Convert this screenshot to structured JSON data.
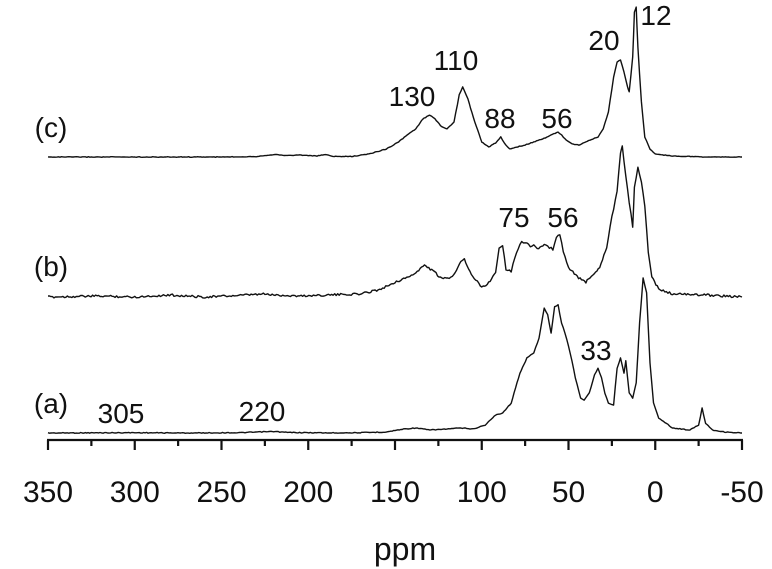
{
  "chart_data": {
    "type": "line",
    "xlabel": "ppm",
    "xlim": [
      350,
      -50
    ],
    "x_ticks": [
      "350",
      "300",
      "250",
      "200",
      "150",
      "100",
      "50",
      "0",
      "-50"
    ],
    "x_tick_values": [
      350,
      300,
      250,
      200,
      150,
      100,
      50,
      0,
      -50
    ],
    "grid": false,
    "series": [
      {
        "name": "(a)",
        "points": [
          [
            350,
            0
          ],
          [
            320,
            0.2
          ],
          [
            300,
            0.3
          ],
          [
            270,
            0
          ],
          [
            240,
            0.3
          ],
          [
            225,
            1.2
          ],
          [
            220,
            1.5
          ],
          [
            212,
            0.6
          ],
          [
            190,
            0.1
          ],
          [
            170,
            0.3
          ],
          [
            155,
            1
          ],
          [
            145,
            4
          ],
          [
            138,
            5
          ],
          [
            130,
            3
          ],
          [
            120,
            4
          ],
          [
            112,
            5
          ],
          [
            105,
            4
          ],
          [
            98,
            8
          ],
          [
            92,
            18
          ],
          [
            88,
            20
          ],
          [
            83,
            30
          ],
          [
            78,
            60
          ],
          [
            74,
            75
          ],
          [
            70,
            80
          ],
          [
            67,
            95
          ],
          [
            64,
            125
          ],
          [
            62,
            118
          ],
          [
            60,
            100
          ],
          [
            58,
            126
          ],
          [
            56,
            128
          ],
          [
            54,
            110
          ],
          [
            52,
            100
          ],
          [
            49,
            80
          ],
          [
            46,
            55
          ],
          [
            43,
            35
          ],
          [
            41,
            33
          ],
          [
            38,
            40
          ],
          [
            35,
            58
          ],
          [
            33,
            65
          ],
          [
            31,
            55
          ],
          [
            29,
            40
          ],
          [
            27,
            30
          ],
          [
            24,
            28
          ],
          [
            22,
            65
          ],
          [
            20,
            75
          ],
          [
            18,
            60
          ],
          [
            17,
            72
          ],
          [
            15,
            40
          ],
          [
            13,
            35
          ],
          [
            11,
            50
          ],
          [
            9,
            110
          ],
          [
            7,
            155
          ],
          [
            5,
            140
          ],
          [
            3,
            70
          ],
          [
            1,
            30
          ],
          [
            -2,
            15
          ],
          [
            -10,
            5
          ],
          [
            -20,
            3
          ],
          [
            -25,
            8
          ],
          [
            -27,
            25
          ],
          [
            -29,
            10
          ],
          [
            -33,
            3
          ],
          [
            -40,
            1
          ],
          [
            -50,
            0
          ]
        ]
      },
      {
        "name": "(b)",
        "points": [
          [
            350,
            0
          ],
          [
            320,
            1
          ],
          [
            300,
            0
          ],
          [
            280,
            2
          ],
          [
            260,
            0
          ],
          [
            240,
            1.5
          ],
          [
            225,
            3
          ],
          [
            220,
            2
          ],
          [
            205,
            1
          ],
          [
            190,
            2
          ],
          [
            170,
            3
          ],
          [
            158,
            8
          ],
          [
            150,
            15
          ],
          [
            145,
            18
          ],
          [
            138,
            24
          ],
          [
            133,
            32
          ],
          [
            128,
            26
          ],
          [
            123,
            18
          ],
          [
            117,
            20
          ],
          [
            112,
            36
          ],
          [
            110,
            38
          ],
          [
            106,
            22
          ],
          [
            100,
            10
          ],
          [
            96,
            14
          ],
          [
            92,
            25
          ],
          [
            90,
            50
          ],
          [
            88,
            52
          ],
          [
            86,
            28
          ],
          [
            83,
            26
          ],
          [
            80,
            45
          ],
          [
            77,
            55
          ],
          [
            74,
            55
          ],
          [
            72,
            50
          ],
          [
            70,
            52
          ],
          [
            68,
            48
          ],
          [
            64,
            52
          ],
          [
            62,
            50
          ],
          [
            59,
            48
          ],
          [
            57,
            60
          ],
          [
            55,
            62
          ],
          [
            53,
            45
          ],
          [
            50,
            30
          ],
          [
            45,
            20
          ],
          [
            40,
            15
          ],
          [
            36,
            22
          ],
          [
            32,
            30
          ],
          [
            28,
            50
          ],
          [
            25,
            80
          ],
          [
            22,
            105
          ],
          [
            20,
            145
          ],
          [
            19,
            150
          ],
          [
            17,
            120
          ],
          [
            15,
            95
          ],
          [
            13,
            70
          ],
          [
            12,
            110
          ],
          [
            10,
            130
          ],
          [
            8,
            115
          ],
          [
            6,
            90
          ],
          [
            4,
            45
          ],
          [
            2,
            20
          ],
          [
            -2,
            8
          ],
          [
            -10,
            3
          ],
          [
            -30,
            2
          ],
          [
            -50,
            0
          ]
        ]
      },
      {
        "name": "(c)",
        "points": [
          [
            350,
            0
          ],
          [
            300,
            0
          ],
          [
            250,
            0
          ],
          [
            230,
            0.5
          ],
          [
            220,
            2.5
          ],
          [
            212,
            1.5
          ],
          [
            205,
            2
          ],
          [
            195,
            1
          ],
          [
            190,
            2.5
          ],
          [
            185,
            0.5
          ],
          [
            175,
            0.5
          ],
          [
            165,
            3
          ],
          [
            155,
            8
          ],
          [
            148,
            15
          ],
          [
            143,
            22
          ],
          [
            138,
            28
          ],
          [
            134,
            38
          ],
          [
            130,
            42
          ],
          [
            127,
            38
          ],
          [
            123,
            30
          ],
          [
            120,
            28
          ],
          [
            116,
            35
          ],
          [
            113,
            62
          ],
          [
            111,
            70
          ],
          [
            108,
            58
          ],
          [
            104,
            35
          ],
          [
            100,
            15
          ],
          [
            96,
            10
          ],
          [
            92,
            14
          ],
          [
            89,
            20
          ],
          [
            87,
            14
          ],
          [
            84,
            8
          ],
          [
            80,
            10
          ],
          [
            75,
            12
          ],
          [
            70,
            15
          ],
          [
            65,
            18
          ],
          [
            60,
            22
          ],
          [
            56,
            25
          ],
          [
            54,
            22
          ],
          [
            52,
            18
          ],
          [
            48,
            13
          ],
          [
            44,
            12
          ],
          [
            40,
            15
          ],
          [
            36,
            18
          ],
          [
            33,
            20
          ],
          [
            30,
            28
          ],
          [
            27,
            45
          ],
          [
            24,
            80
          ],
          [
            22,
            95
          ],
          [
            20,
            97
          ],
          [
            18,
            85
          ],
          [
            16,
            70
          ],
          [
            15,
            65
          ],
          [
            13,
            100
          ],
          [
            12,
            145
          ],
          [
            11,
            150
          ],
          [
            10,
            110
          ],
          [
            8,
            55
          ],
          [
            6,
            20
          ],
          [
            3,
            8
          ],
          [
            0,
            3
          ],
          [
            -10,
            1
          ],
          [
            -30,
            0
          ],
          [
            -50,
            0
          ]
        ]
      }
    ],
    "peak_labels": [
      {
        "series": "(a)",
        "text": "305",
        "x": 305
      },
      {
        "series": "(a)",
        "text": "220",
        "x": 220
      },
      {
        "series": "(a)",
        "text": "33",
        "x": 33
      },
      {
        "series": "(b)",
        "text": "75",
        "x": 75
      },
      {
        "series": "(b)",
        "text": "56",
        "x": 56
      },
      {
        "series": "(c)",
        "text": "130",
        "x": 130
      },
      {
        "series": "(c)",
        "text": "110",
        "x": 110
      },
      {
        "series": "(c)",
        "text": "88",
        "x": 88
      },
      {
        "series": "(c)",
        "text": "56",
        "x": 56
      },
      {
        "series": "(c)",
        "text": "20",
        "x": 20
      },
      {
        "series": "(c)",
        "text": "12",
        "x": 12
      }
    ]
  }
}
